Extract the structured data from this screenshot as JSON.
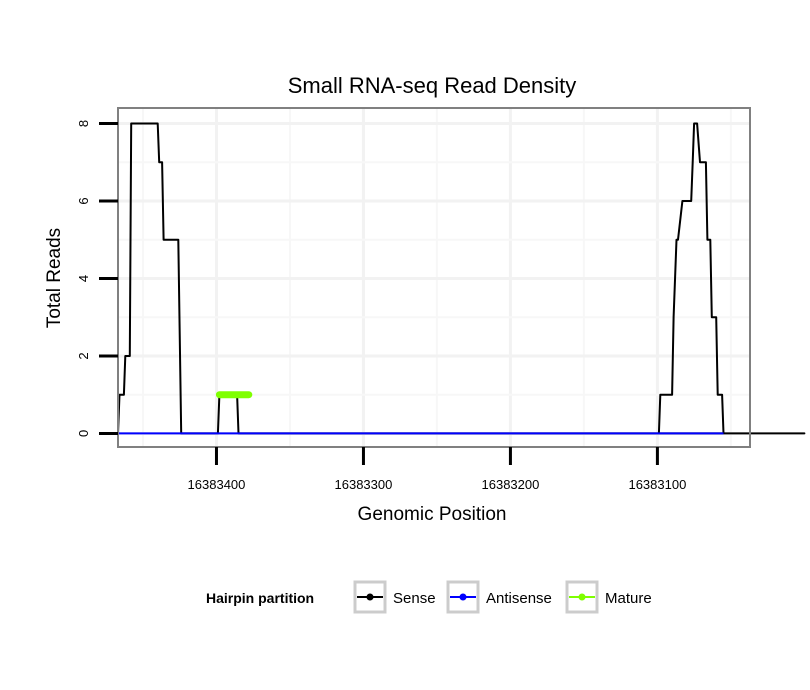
{
  "chart_data": {
    "type": "line",
    "title": "Small RNA-seq Read Density",
    "xlabel": "Genomic Position",
    "ylabel": "Total Reads",
    "xlim": [
      16383467,
      16383037
    ],
    "ylim": [
      -0.35,
      8.4
    ],
    "x_reversed": true,
    "x_ticks": [
      16383400,
      16383300,
      16383200,
      16383100
    ],
    "x_tick_labels": [
      "16383400",
      "16383300",
      "16383200",
      "16383100"
    ],
    "y_ticks": [
      0,
      2,
      4,
      6,
      8
    ],
    "y_tick_labels": [
      "0",
      "2",
      "4",
      "6",
      "8"
    ],
    "grid": true,
    "legend": {
      "title": "Hairpin partition",
      "position": "bottom",
      "entries": [
        {
          "label": "Sense",
          "color": "#000000"
        },
        {
          "label": "Antisense",
          "color": "#0000ff"
        },
        {
          "label": "Mature",
          "color": "#7fff00"
        }
      ]
    },
    "series": [
      {
        "name": "Sense",
        "color": "#000000",
        "x": [
          16383467,
          16383466,
          16383463,
          16383462,
          16383459,
          16383458,
          16383457,
          16383456,
          16383452,
          16383448,
          16383440,
          16383439,
          16383437,
          16383436,
          16383432,
          16383431,
          16383426,
          16383424,
          16383399,
          16383398,
          16383386,
          16383385,
          16383000,
          16383099,
          16383098,
          16383090,
          16383089,
          16383087,
          16383086,
          16383083,
          16383082,
          16383077,
          16383076,
          16383075,
          16383074,
          16383073,
          16383071,
          16383070,
          16383067,
          16383066,
          16383064,
          16383063,
          16383060,
          16383059,
          16383056,
          16383055,
          16383052
        ],
        "y": [
          0,
          1,
          1,
          2,
          2,
          8,
          8,
          8,
          8,
          8,
          8,
          7,
          7,
          5,
          5,
          5,
          5,
          0,
          0,
          1,
          1,
          0,
          0,
          0,
          1,
          1,
          3,
          5,
          5,
          6,
          6,
          6,
          7,
          8,
          8,
          8,
          7,
          7,
          7,
          5,
          5,
          3,
          3,
          1,
          1,
          0,
          0
        ]
      },
      {
        "name": "Antisense",
        "color": "#0000ff",
        "x": [
          16383467,
          16383424,
          16383099,
          16383055
        ],
        "y": [
          0,
          0,
          0,
          0
        ]
      },
      {
        "name": "Mature",
        "color": "#7fff00",
        "x": [
          16383398,
          16383378
        ],
        "y": [
          1,
          1
        ]
      }
    ]
  }
}
